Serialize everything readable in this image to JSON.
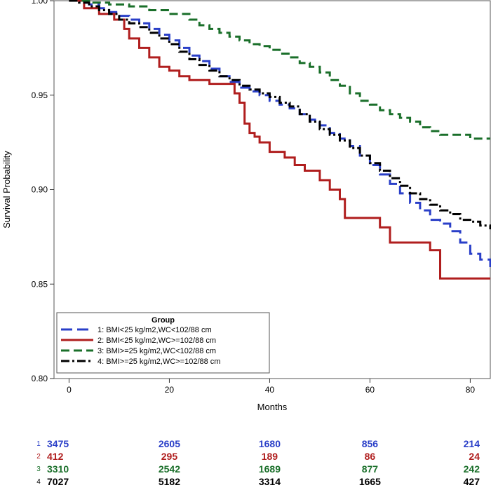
{
  "chart_data": {
    "type": "line",
    "title": "",
    "xlabel": "Months",
    "ylabel": "Survival Probability",
    "xlim": [
      -3,
      84
    ],
    "ylim": [
      0.8,
      1.0
    ],
    "xticks": [
      0,
      20,
      40,
      60,
      80
    ],
    "xtick_labels": [
      "0",
      "20",
      "40",
      "60",
      "80"
    ],
    "yticks": [
      0.8,
      0.85,
      0.9,
      0.95,
      1.0
    ],
    "ytick_labels": [
      "0.80",
      "0.85",
      "0.90",
      "0.95",
      "1.00"
    ],
    "grid": false,
    "legend": {
      "title": "Group",
      "placement": "bottom-left",
      "entries": [
        "1: BMI<25 kg/m2,WC<102/88 cm",
        "2: BMI<25 kg/m2,WC>=102/88 cm",
        "3: BMI>=25 kg/m2,WC<102/88 cm",
        "4: BMI>=25 kg/m2,WC>=102/88 cm"
      ]
    },
    "series": [
      {
        "name": "1: BMI<25 kg/m2,WC<102/88 cm",
        "color": "#2a3fc8",
        "dash": "long-dash",
        "points": [
          [
            0,
            1.0
          ],
          [
            2,
            0.999
          ],
          [
            4,
            0.998
          ],
          [
            6,
            0.996
          ],
          [
            8,
            0.994
          ],
          [
            10,
            0.992
          ],
          [
            12,
            0.99
          ],
          [
            14,
            0.988
          ],
          [
            16,
            0.985
          ],
          [
            18,
            0.982
          ],
          [
            20,
            0.979
          ],
          [
            22,
            0.975
          ],
          [
            24,
            0.971
          ],
          [
            26,
            0.968
          ],
          [
            28,
            0.964
          ],
          [
            30,
            0.96
          ],
          [
            32,
            0.957
          ],
          [
            34,
            0.954
          ],
          [
            36,
            0.952
          ],
          [
            38,
            0.95
          ],
          [
            40,
            0.947
          ],
          [
            42,
            0.945
          ],
          [
            44,
            0.943
          ],
          [
            46,
            0.94
          ],
          [
            48,
            0.937
          ],
          [
            50,
            0.934
          ],
          [
            52,
            0.93
          ],
          [
            54,
            0.927
          ],
          [
            56,
            0.923
          ],
          [
            58,
            0.918
          ],
          [
            60,
            0.913
          ],
          [
            62,
            0.908
          ],
          [
            64,
            0.903
          ],
          [
            66,
            0.898
          ],
          [
            68,
            0.893
          ],
          [
            70,
            0.889
          ],
          [
            72,
            0.884
          ],
          [
            74,
            0.882
          ],
          [
            76,
            0.878
          ],
          [
            78,
            0.872
          ],
          [
            80,
            0.866
          ],
          [
            82,
            0.863
          ],
          [
            84,
            0.859
          ]
        ]
      },
      {
        "name": "2: BMI<25 kg/m2,WC>=102/88 cm",
        "color": "#b01e1e",
        "dash": "solid",
        "points": [
          [
            0,
            1.0
          ],
          [
            3,
            0.996
          ],
          [
            6,
            0.993
          ],
          [
            9,
            0.99
          ],
          [
            11,
            0.985
          ],
          [
            12,
            0.98
          ],
          [
            14,
            0.975
          ],
          [
            16,
            0.97
          ],
          [
            18,
            0.965
          ],
          [
            20,
            0.963
          ],
          [
            22,
            0.96
          ],
          [
            24,
            0.958
          ],
          [
            26,
            0.958
          ],
          [
            28,
            0.956
          ],
          [
            30,
            0.956
          ],
          [
            33,
            0.951
          ],
          [
            34,
            0.946
          ],
          [
            35,
            0.935
          ],
          [
            36,
            0.93
          ],
          [
            37,
            0.928
          ],
          [
            38,
            0.925
          ],
          [
            40,
            0.92
          ],
          [
            43,
            0.917
          ],
          [
            45,
            0.913
          ],
          [
            47,
            0.91
          ],
          [
            50,
            0.905
          ],
          [
            52,
            0.9
          ],
          [
            54,
            0.895
          ],
          [
            55,
            0.885
          ],
          [
            58,
            0.885
          ],
          [
            60,
            0.885
          ],
          [
            62,
            0.88
          ],
          [
            64,
            0.872
          ],
          [
            68,
            0.872
          ],
          [
            72,
            0.868
          ],
          [
            74,
            0.853
          ],
          [
            84,
            0.853
          ]
        ]
      },
      {
        "name": "3: BMI>=25 kg/m2,WC<102/88 cm",
        "color": "#1a6f2a",
        "dash": "dashed",
        "points": [
          [
            0,
            1.0
          ],
          [
            4,
            0.999
          ],
          [
            8,
            0.998
          ],
          [
            12,
            0.997
          ],
          [
            16,
            0.995
          ],
          [
            20,
            0.993
          ],
          [
            24,
            0.99
          ],
          [
            26,
            0.987
          ],
          [
            28,
            0.985
          ],
          [
            30,
            0.983
          ],
          [
            32,
            0.981
          ],
          [
            34,
            0.979
          ],
          [
            36,
            0.977
          ],
          [
            38,
            0.976
          ],
          [
            40,
            0.974
          ],
          [
            42,
            0.972
          ],
          [
            44,
            0.97
          ],
          [
            46,
            0.967
          ],
          [
            48,
            0.965
          ],
          [
            50,
            0.962
          ],
          [
            52,
            0.958
          ],
          [
            54,
            0.955
          ],
          [
            56,
            0.951
          ],
          [
            58,
            0.947
          ],
          [
            60,
            0.945
          ],
          [
            62,
            0.942
          ],
          [
            64,
            0.94
          ],
          [
            66,
            0.938
          ],
          [
            68,
            0.936
          ],
          [
            70,
            0.933
          ],
          [
            72,
            0.931
          ],
          [
            74,
            0.929
          ],
          [
            76,
            0.929
          ],
          [
            80,
            0.927
          ],
          [
            84,
            0.927
          ]
        ]
      },
      {
        "name": "4: BMI>=25 kg/m2,WC>=102/88 cm",
        "color": "#000000",
        "dash": "dash-dot",
        "points": [
          [
            0,
            1.0
          ],
          [
            2,
            0.999
          ],
          [
            4,
            0.997
          ],
          [
            6,
            0.995
          ],
          [
            8,
            0.993
          ],
          [
            10,
            0.99
          ],
          [
            12,
            0.988
          ],
          [
            14,
            0.986
          ],
          [
            16,
            0.983
          ],
          [
            18,
            0.98
          ],
          [
            20,
            0.977
          ],
          [
            22,
            0.973
          ],
          [
            24,
            0.969
          ],
          [
            26,
            0.966
          ],
          [
            28,
            0.963
          ],
          [
            30,
            0.96
          ],
          [
            32,
            0.958
          ],
          [
            34,
            0.955
          ],
          [
            36,
            0.953
          ],
          [
            38,
            0.951
          ],
          [
            40,
            0.949
          ],
          [
            42,
            0.946
          ],
          [
            44,
            0.944
          ],
          [
            46,
            0.94
          ],
          [
            48,
            0.936
          ],
          [
            50,
            0.932
          ],
          [
            52,
            0.929
          ],
          [
            54,
            0.926
          ],
          [
            56,
            0.922
          ],
          [
            58,
            0.918
          ],
          [
            60,
            0.914
          ],
          [
            62,
            0.91
          ],
          [
            64,
            0.906
          ],
          [
            66,
            0.902
          ],
          [
            68,
            0.898
          ],
          [
            70,
            0.895
          ],
          [
            72,
            0.892
          ],
          [
            74,
            0.889
          ],
          [
            76,
            0.887
          ],
          [
            78,
            0.884
          ],
          [
            80,
            0.883
          ],
          [
            82,
            0.881
          ],
          [
            84,
            0.879
          ]
        ]
      }
    ],
    "risk_table": {
      "time_points": [
        0,
        20,
        40,
        60,
        80
      ],
      "rows": [
        {
          "label": "1",
          "color": "#2a3fc8",
          "values": [
            "3475",
            "2605",
            "1680",
            "856",
            "214"
          ]
        },
        {
          "label": "2",
          "color": "#b01e1e",
          "values": [
            "412",
            "295",
            "189",
            "86",
            "24"
          ]
        },
        {
          "label": "3",
          "color": "#1a6f2a",
          "values": [
            "3310",
            "2542",
            "1689",
            "877",
            "242"
          ]
        },
        {
          "label": "4",
          "color": "#000000",
          "values": [
            "7027",
            "5182",
            "3314",
            "1665",
            "427"
          ]
        }
      ]
    }
  }
}
